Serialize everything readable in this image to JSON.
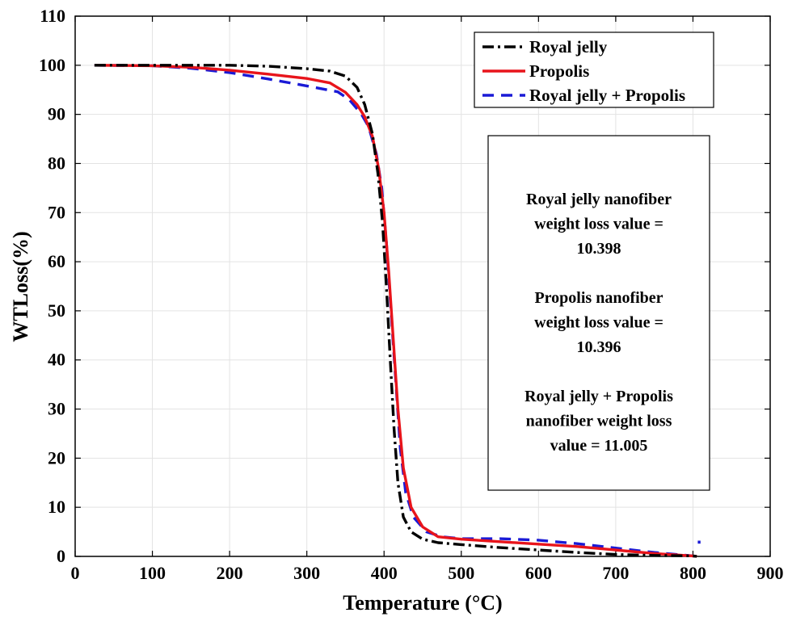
{
  "chart_data": {
    "type": "line",
    "title": "",
    "xlabel": "Temperature (°C)",
    "ylabel": "WTLoss(%)",
    "xlim": [
      0,
      900
    ],
    "ylim": [
      0,
      110
    ],
    "xticks": [
      0,
      100,
      200,
      300,
      400,
      500,
      600,
      700,
      800,
      900
    ],
    "yticks": [
      0,
      10,
      20,
      30,
      40,
      50,
      60,
      70,
      80,
      90,
      100,
      110
    ],
    "grid": true,
    "legend_position": "top-right",
    "series": [
      {
        "name": "Royal jelly",
        "color": "#000000",
        "line_style": "dash-dot",
        "points": [
          [
            25,
            100
          ],
          [
            100,
            100
          ],
          [
            200,
            100
          ],
          [
            250,
            99.8
          ],
          [
            300,
            99.3
          ],
          [
            330,
            98.8
          ],
          [
            350,
            97.8
          ],
          [
            365,
            95.5
          ],
          [
            375,
            92
          ],
          [
            385,
            86
          ],
          [
            392,
            78
          ],
          [
            398,
            68
          ],
          [
            403,
            55
          ],
          [
            408,
            40
          ],
          [
            413,
            26
          ],
          [
            418,
            15
          ],
          [
            425,
            8
          ],
          [
            435,
            5
          ],
          [
            450,
            3.5
          ],
          [
            470,
            2.8
          ],
          [
            500,
            2.4
          ],
          [
            550,
            1.8
          ],
          [
            600,
            1.3
          ],
          [
            650,
            0.8
          ],
          [
            700,
            0.4
          ],
          [
            750,
            0.2
          ],
          [
            800,
            0.1
          ],
          [
            805,
            0
          ]
        ]
      },
      {
        "name": "Propolis",
        "color": "#e8141b",
        "line_style": "solid",
        "points": [
          [
            25,
            100
          ],
          [
            100,
            99.9
          ],
          [
            150,
            99.6
          ],
          [
            200,
            99
          ],
          [
            250,
            98.2
          ],
          [
            300,
            97.3
          ],
          [
            330,
            96.4
          ],
          [
            350,
            94.5
          ],
          [
            365,
            92
          ],
          [
            375,
            89.5
          ],
          [
            385,
            85.5
          ],
          [
            393,
            79
          ],
          [
            400,
            70
          ],
          [
            406,
            58
          ],
          [
            412,
            44
          ],
          [
            418,
            30
          ],
          [
            425,
            18
          ],
          [
            435,
            10
          ],
          [
            450,
            6
          ],
          [
            470,
            4
          ],
          [
            500,
            3.5
          ],
          [
            550,
            3
          ],
          [
            600,
            2.5
          ],
          [
            650,
            2
          ],
          [
            700,
            1.3
          ],
          [
            750,
            0.6
          ],
          [
            800,
            0.1
          ],
          [
            805,
            0
          ]
        ]
      },
      {
        "name": "Royal jelly + Propolis",
        "color": "#1a1ad6",
        "line_style": "dashed",
        "points": [
          [
            25,
            100
          ],
          [
            100,
            99.9
          ],
          [
            150,
            99.4
          ],
          [
            200,
            98.5
          ],
          [
            250,
            97.2
          ],
          [
            300,
            95.8
          ],
          [
            340,
            94.6
          ],
          [
            355,
            93
          ],
          [
            370,
            90.2
          ],
          [
            380,
            87.5
          ],
          [
            390,
            82
          ],
          [
            397,
            75
          ],
          [
            403,
            64
          ],
          [
            409,
            50
          ],
          [
            415,
            36
          ],
          [
            421,
            22
          ],
          [
            428,
            13
          ],
          [
            438,
            8
          ],
          [
            455,
            5
          ],
          [
            475,
            4
          ],
          [
            500,
            3.6
          ],
          [
            550,
            3.6
          ],
          [
            600,
            3.3
          ],
          [
            650,
            2.6
          ],
          [
            700,
            1.7
          ],
          [
            750,
            0.8
          ],
          [
            800,
            0.1
          ],
          [
            805,
            0
          ]
        ]
      },
      {
        "name": "",
        "color": "#1a1ad6",
        "line_style": "dashed",
        "points": [
          [
            808,
            2.6
          ],
          [
            808,
            3.2
          ]
        ]
      }
    ],
    "annotation": {
      "lines": [
        "Royal jelly nanofiber",
        "weight loss value =",
        "10.398",
        "",
        "Propolis nanofiber",
        "weight loss value =",
        "10.396",
        "",
        "Royal jelly + Propolis",
        "nanofiber weight loss",
        "value = 11.005"
      ]
    }
  }
}
